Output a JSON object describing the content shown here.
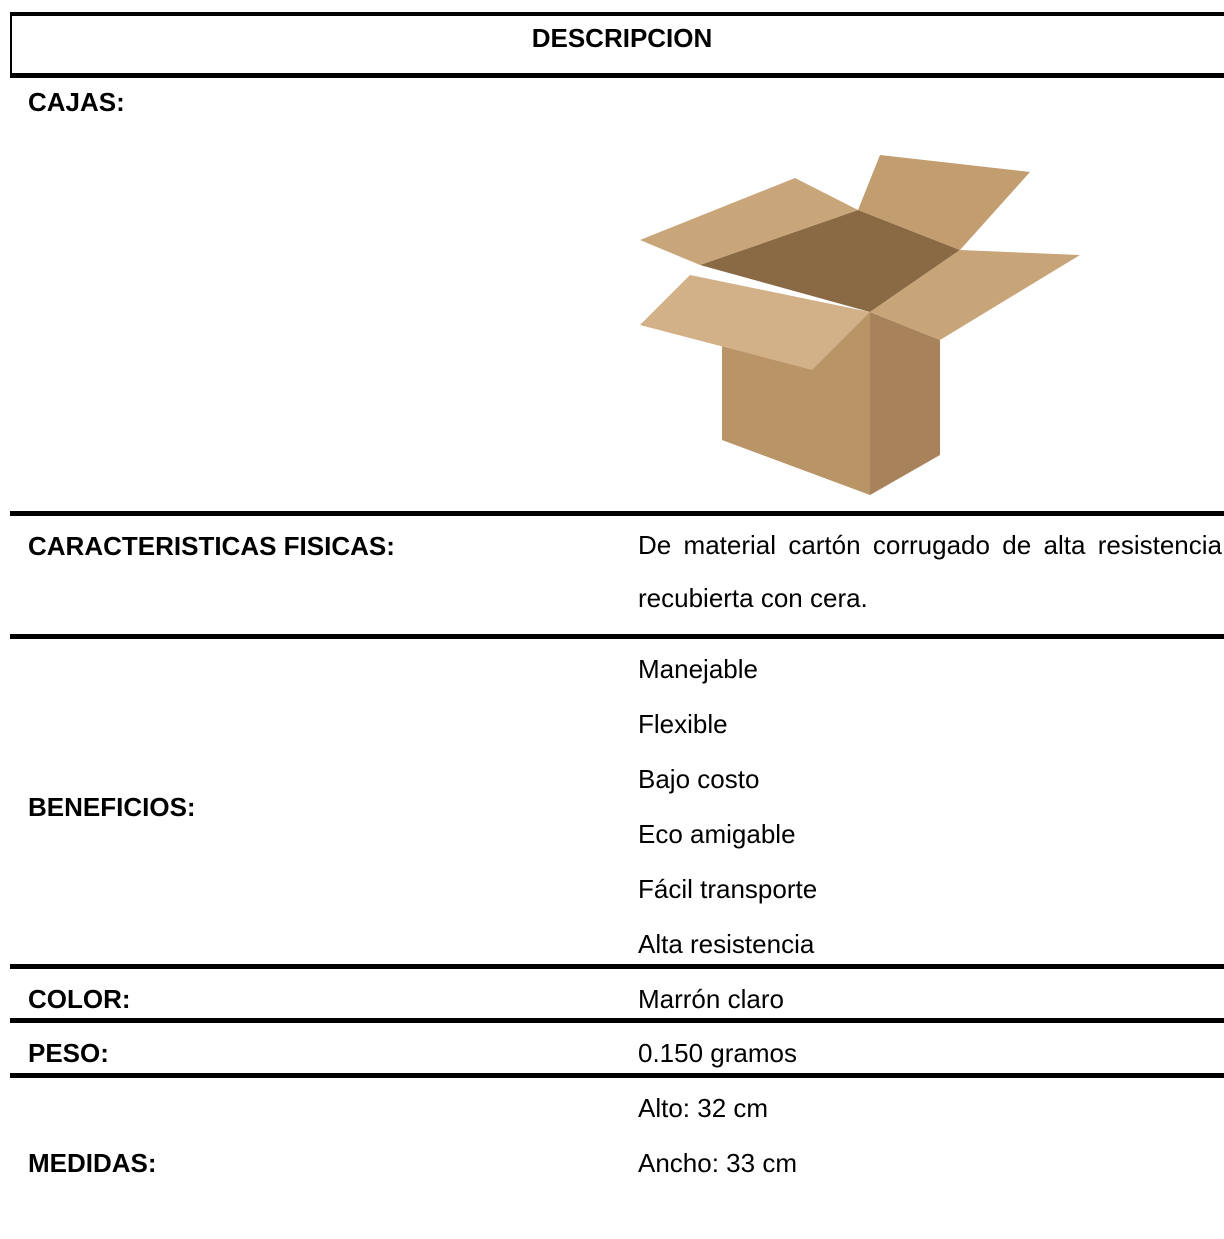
{
  "header": {
    "title": "DESCRIPCION"
  },
  "section": {
    "title": "CAJAS:"
  },
  "rows": [
    {
      "label": "CARACTERISTICAS FISICAS:",
      "values": [
        "De material cartón corrugado de alta resistencia recubierta con cera."
      ]
    },
    {
      "label": "BENEFICIOS:",
      "values": [
        "Manejable",
        "Flexible",
        "Bajo costo",
        "Eco amigable",
        "Fácil transporte",
        "Alta resistencia"
      ]
    },
    {
      "label": "COLOR:",
      "values": [
        "Marrón claro"
      ]
    },
    {
      "label": "PESO:",
      "values": [
        "0.150 gramos"
      ]
    },
    {
      "label": "MEDIDAS:",
      "values": [
        "Alto: 32 cm",
        "Ancho: 33 cm"
      ]
    }
  ]
}
